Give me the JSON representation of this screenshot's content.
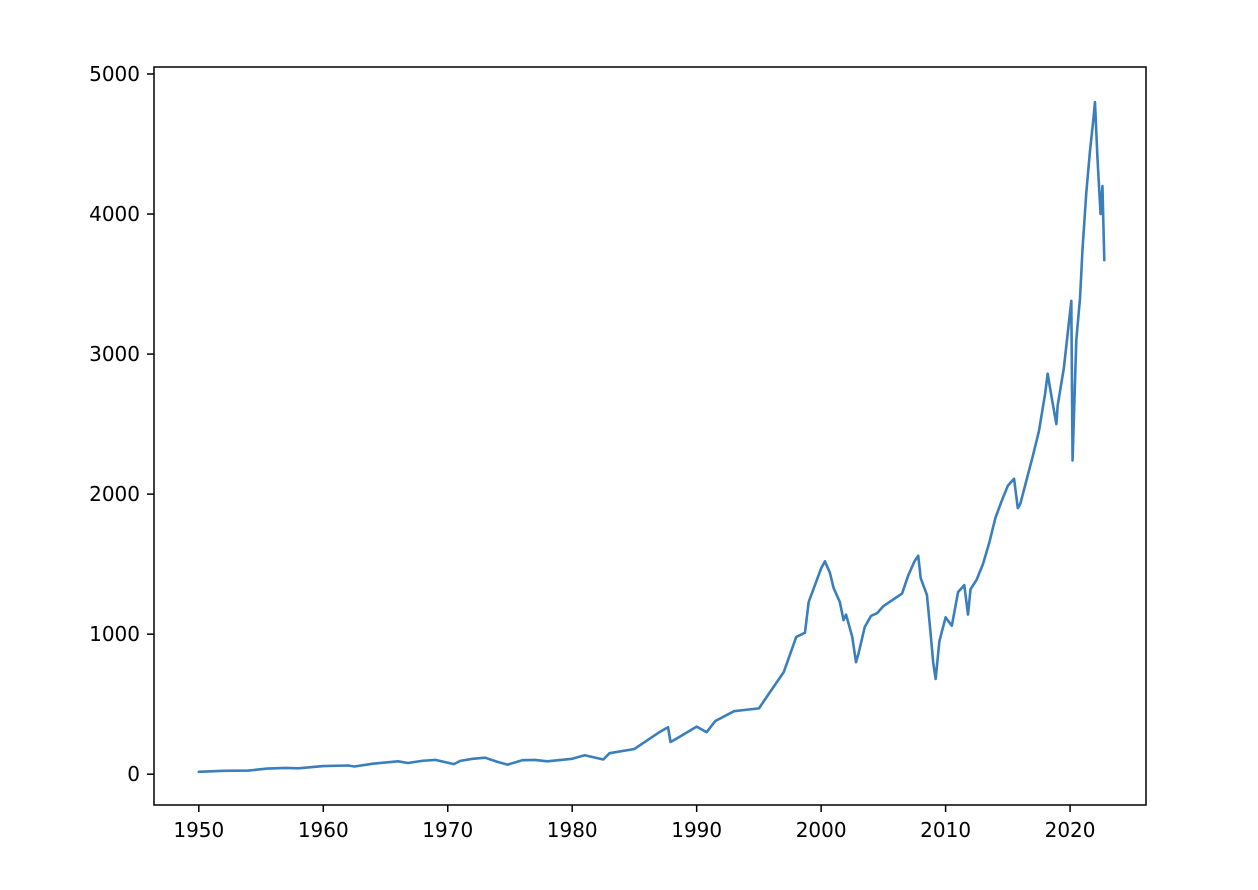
{
  "chart_data": {
    "type": "line",
    "title": "",
    "xlabel": "",
    "ylabel": "",
    "xlim": [
      1946.4,
      2026.1
    ],
    "ylim": [
      -220,
      5050
    ],
    "xticks": [
      1950,
      1960,
      1970,
      1980,
      1990,
      2000,
      2010,
      2020
    ],
    "yticks": [
      0,
      1000,
      2000,
      3000,
      4000,
      5000
    ],
    "xtick_labels": [
      "1950",
      "1960",
      "1970",
      "1980",
      "1990",
      "2000",
      "2010",
      "2020"
    ],
    "ytick_labels": [
      "0",
      "1000",
      "2000",
      "3000",
      "4000",
      "5000"
    ],
    "grid": false,
    "legend": "none",
    "colors": {
      "line": "#3a7fbc"
    },
    "series": [
      {
        "x": [
          1950.0,
          1952.0,
          1954.0,
          1955.5,
          1957.0,
          1958.0,
          1960.0,
          1962.0,
          1962.5,
          1964.0,
          1966.0,
          1966.8,
          1968.0,
          1969.0,
          1970.5,
          1971.0,
          1972.0,
          1973.0,
          1974.0,
          1974.8,
          1976.0,
          1977.0,
          1978.0,
          1980.0,
          1981.0,
          1982.5,
          1983.0,
          1985.0,
          1987.0,
          1987.7,
          1987.9,
          1988.5,
          1990.0,
          1990.8,
          1991.5,
          1993.0,
          1994.0,
          1995.0,
          1996.0,
          1997.0,
          1998.0,
          1998.7,
          1999.0,
          1999.5,
          2000.0,
          2000.3,
          2000.7,
          2001.0,
          2001.5,
          2001.8,
          2002.0,
          2002.5,
          2002.8,
          2003.0,
          2003.5,
          2004.0,
          2004.5,
          2005.0,
          2006.0,
          2006.5,
          2007.0,
          2007.5,
          2007.8,
          2008.0,
          2008.5,
          2008.8,
          2009.0,
          2009.2,
          2009.5,
          2010.0,
          2010.5,
          2011.0,
          2011.5,
          2011.8,
          2012.0,
          2012.5,
          2013.0,
          2013.5,
          2014.0,
          2014.5,
          2015.0,
          2015.5,
          2015.8,
          2016.0,
          2016.5,
          2017.0,
          2017.5,
          2018.0,
          2018.2,
          2018.5,
          2018.9,
          2019.0,
          2019.5,
          2020.0,
          2020.1,
          2020.2,
          2020.5,
          2020.8,
          2021.0,
          2021.3,
          2021.6,
          2021.9,
          2022.0,
          2022.2,
          2022.45,
          2022.6,
          2022.75
        ],
        "y": [
          17,
          24,
          26,
          40,
          45,
          42,
          58,
          62,
          55,
          75,
          92,
          80,
          96,
          102,
          72,
          95,
          110,
          118,
          88,
          68,
          100,
          102,
          92,
          110,
          135,
          105,
          150,
          180,
          300,
          335,
          230,
          260,
          340,
          300,
          380,
          450,
          460,
          470,
          600,
          730,
          980,
          1010,
          1230,
          1350,
          1470,
          1520,
          1440,
          1330,
          1230,
          1100,
          1140,
          980,
          800,
          860,
          1050,
          1130,
          1150,
          1200,
          1260,
          1290,
          1420,
          1520,
          1560,
          1400,
          1280,
          1000,
          800,
          680,
          950,
          1120,
          1060,
          1300,
          1350,
          1140,
          1320,
          1390,
          1500,
          1650,
          1830,
          1950,
          2060,
          2110,
          1900,
          1930,
          2100,
          2270,
          2450,
          2720,
          2860,
          2700,
          2500,
          2630,
          2900,
          3300,
          3380,
          2240,
          3100,
          3400,
          3750,
          4150,
          4450,
          4700,
          4800,
          4400,
          4000,
          4200,
          3670
        ]
      }
    ]
  }
}
